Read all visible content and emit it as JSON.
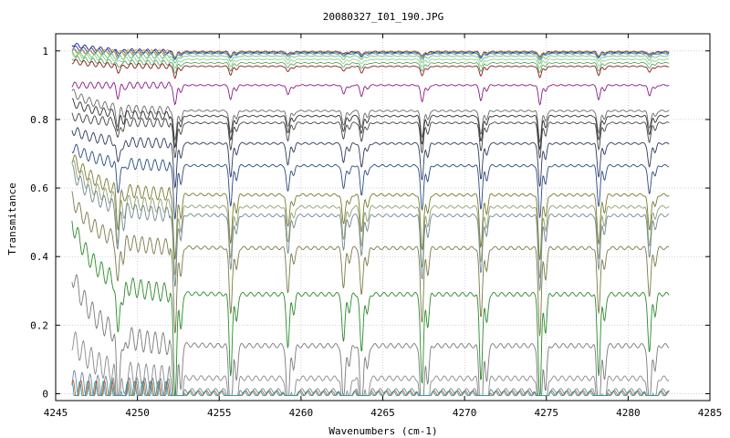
{
  "chart_data": {
    "type": "line",
    "title": "20080327_I01_190.JPG",
    "xlabel": "Wavenumbers (cm-1)",
    "ylabel": "Transmitance",
    "xlim": [
      4245,
      4285
    ],
    "ylim": [
      -0.02,
      1.05
    ],
    "grid": true,
    "x_ticks": [
      4245,
      4250,
      4255,
      4260,
      4265,
      4270,
      4275,
      4280,
      4285
    ],
    "x_tick_labels": [
      "4245",
      "4250",
      "4255",
      "4260",
      "4265",
      "4270",
      "4275",
      "4280",
      "4285"
    ],
    "y_ticks": [
      0,
      0.2,
      0.4,
      0.6,
      0.8,
      1
    ],
    "y_tick_labels": [
      "0",
      "0.2",
      "0.4",
      "0.6",
      "0.8",
      "1"
    ],
    "x_range": [
      4246,
      4282.5
    ],
    "absorption_lines": [
      4248.8,
      4252.3,
      4255.7,
      4259.2,
      4262.6,
      4263.7,
      4267.4,
      4271.0,
      4274.6,
      4278.2,
      4281.3
    ],
    "line_depths": [
      0.55,
      1.0,
      0.75,
      0.5,
      0.45,
      0.55,
      0.85,
      0.8,
      1.0,
      0.75,
      0.55
    ],
    "series": [
      {
        "color": "#1f1f8f",
        "start": 1.02,
        "end": 1.0,
        "baseline": 0.998
      },
      {
        "color": "#2c3fa8",
        "start": 1.01,
        "end": 0.995,
        "baseline": 0.995
      },
      {
        "color": "#3a8ad1",
        "start": 1.0,
        "end": 0.99,
        "baseline": 0.992
      },
      {
        "color": "#d8a020",
        "start": 1.0,
        "end": 1.0,
        "baseline": 0.997
      },
      {
        "color": "#70c070",
        "start": 0.99,
        "end": 0.985,
        "baseline": 0.985
      },
      {
        "color": "#8fd08f",
        "start": 0.99,
        "end": 0.975,
        "baseline": 0.975
      },
      {
        "color": "#5aa86a",
        "start": 0.98,
        "end": 0.965,
        "baseline": 0.965
      },
      {
        "color": "#8a1a1a",
        "start": 0.97,
        "end": 0.955,
        "baseline": 0.955
      },
      {
        "color": "#8a1a8a",
        "start": 0.9,
        "end": 0.9,
        "baseline": 0.9
      },
      {
        "color": "#6a6a6a",
        "start": 0.88,
        "end": 0.845,
        "baseline": 0.825
      },
      {
        "color": "#303030",
        "start": 0.85,
        "end": 0.83,
        "baseline": 0.81
      },
      {
        "color": "#454545",
        "start": 0.81,
        "end": 0.81,
        "baseline": 0.79
      },
      {
        "color": "#2a3a5a",
        "start": 0.77,
        "end": 0.755,
        "baseline": 0.73
      },
      {
        "color": "#2a4a80",
        "start": 0.72,
        "end": 0.68,
        "baseline": 0.665
      },
      {
        "color": "#7a7a30",
        "start": 0.69,
        "end": 0.585,
        "baseline": 0.58
      },
      {
        "color": "#90a070",
        "start": 0.67,
        "end": 0.55,
        "baseline": 0.545
      },
      {
        "color": "#708890",
        "start": 0.65,
        "end": 0.53,
        "baseline": 0.52
      },
      {
        "color": "#7a7a4a",
        "start": 0.57,
        "end": 0.43,
        "baseline": 0.425
      },
      {
        "color": "#2a8a2a",
        "start": 0.5,
        "end": 0.3,
        "baseline": 0.29
      },
      {
        "color": "#7a7a7a",
        "start": 0.35,
        "end": 0.15,
        "baseline": 0.14
      },
      {
        "color": "#8a8a8a",
        "start": 0.16,
        "end": 0.05,
        "baseline": 0.045
      },
      {
        "color": "#6a8aa8",
        "start": 0.035,
        "end": 0.008,
        "baseline": 0.008
      },
      {
        "color": "#d06020",
        "start": 0.004,
        "end": 0.002,
        "baseline": 0.002
      },
      {
        "color": "#20a0b0",
        "start": 0.0,
        "end": 0.0,
        "baseline": 0.0
      }
    ]
  }
}
